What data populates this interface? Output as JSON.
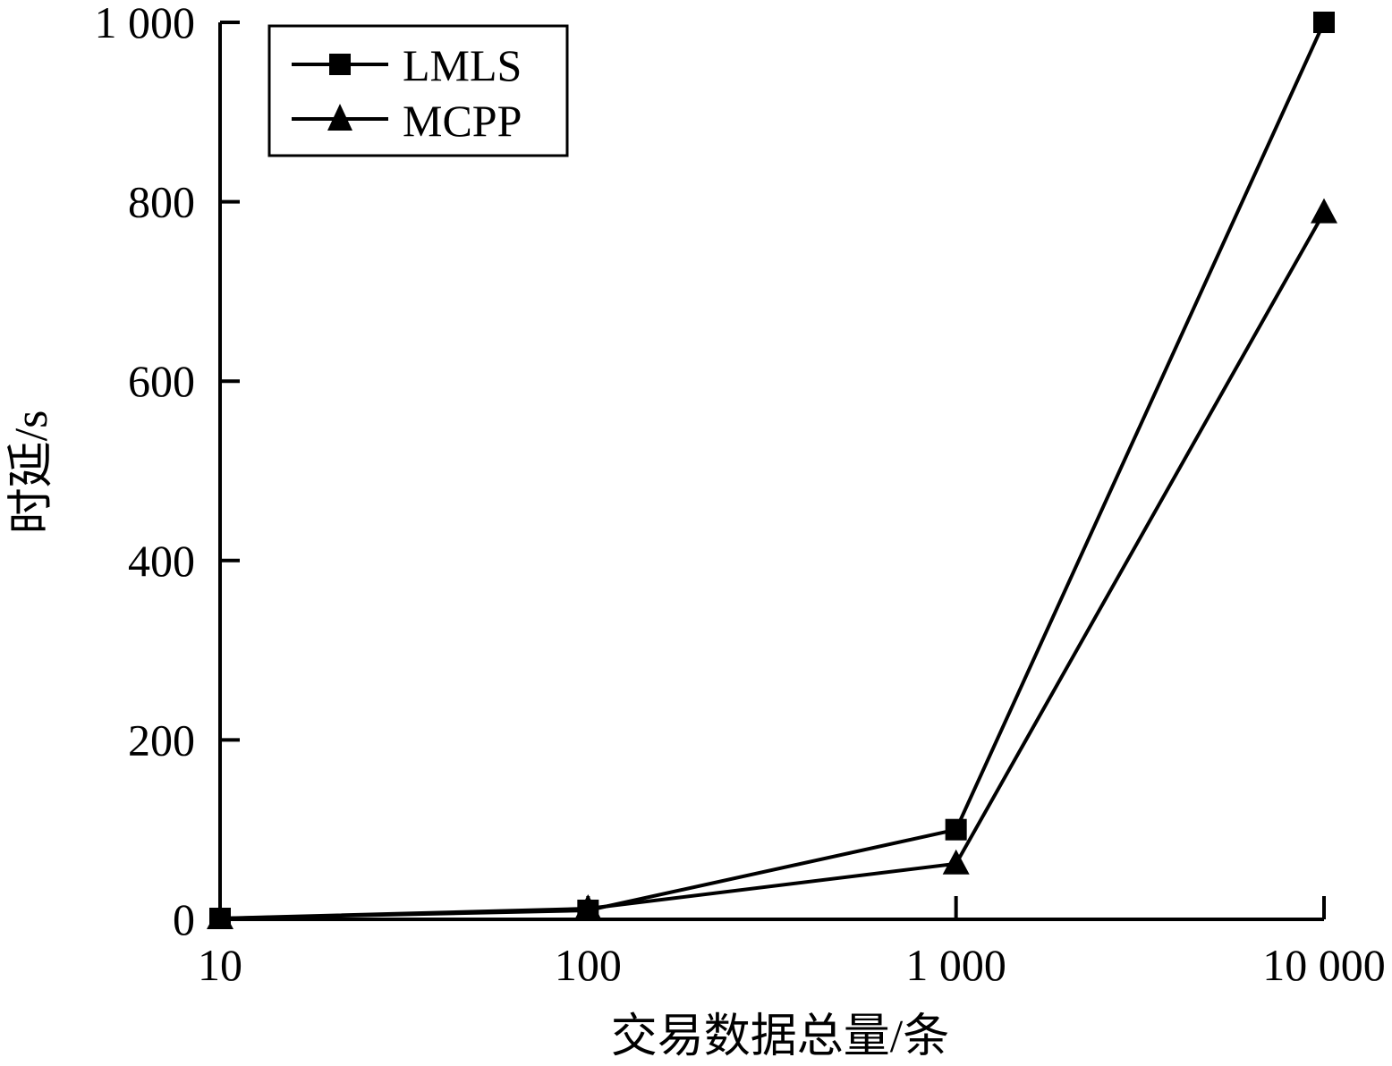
{
  "chart_data": {
    "type": "line",
    "x_scale": "log",
    "x": [
      10,
      100,
      1000,
      10000
    ],
    "x_tick_labels": [
      "10",
      "100",
      "1 000",
      "10 000"
    ],
    "y_ticks": [
      0,
      200,
      400,
      600,
      800,
      1000
    ],
    "y_tick_labels": [
      "0",
      "200",
      "400",
      "600",
      "800",
      "1 000"
    ],
    "ylim": [
      0,
      1000
    ],
    "xlim": [
      10,
      10000
    ],
    "xlabel": "交易数据总量/条",
    "ylabel": "时延/s",
    "grid": false,
    "legend_position": "top-left",
    "series": [
      {
        "name": "LMLS",
        "marker": "square",
        "color": "#000000",
        "values": [
          1,
          10,
          100,
          1000
        ]
      },
      {
        "name": "MCPP",
        "marker": "triangle",
        "color": "#000000",
        "values": [
          1,
          12,
          62,
          788
        ]
      }
    ]
  }
}
